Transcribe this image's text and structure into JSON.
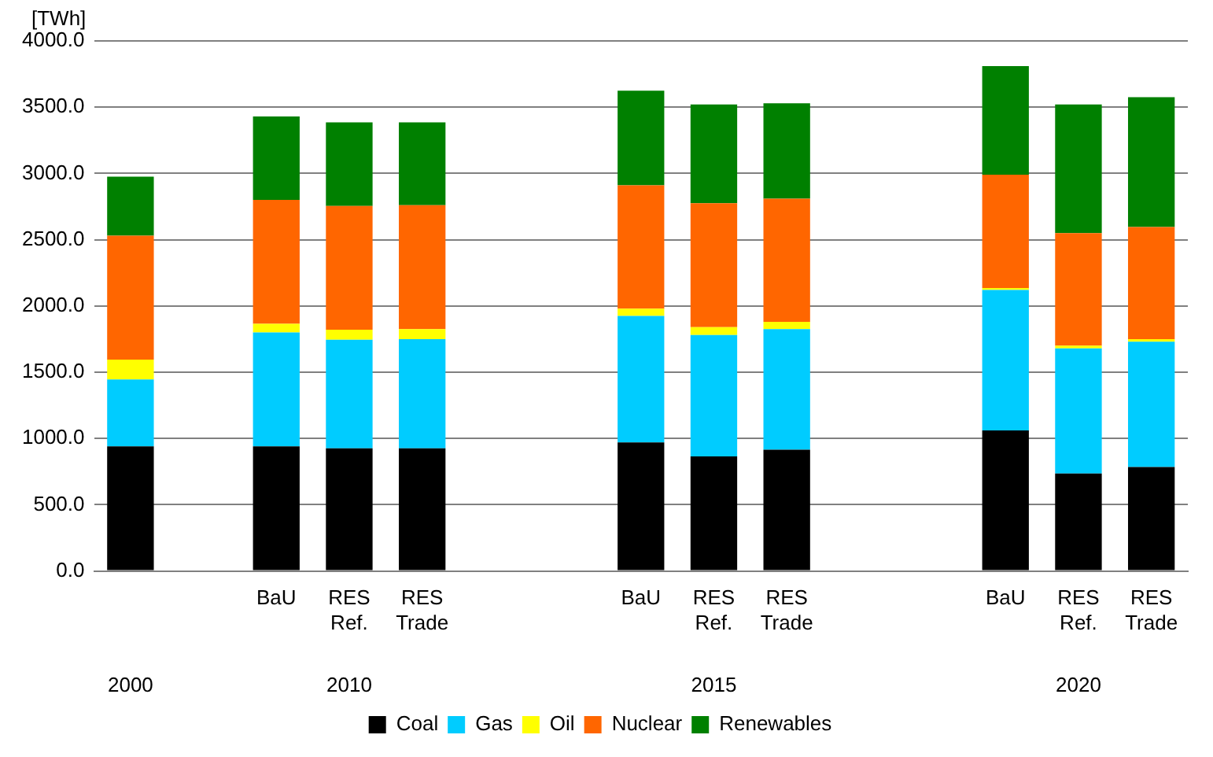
{
  "chart_data": {
    "type": "bar",
    "stacked": true,
    "ylabel": "[TWh]",
    "categories": [
      null,
      null,
      "BaU",
      "RES Ref.",
      "RES Trade",
      null,
      null,
      "BaU",
      "RES Ref.",
      "RES Trade",
      null,
      null,
      "BaU",
      "RES Ref.",
      "RES Trade"
    ],
    "series": [
      {
        "name": "Coal",
        "color": "#000000",
        "values": [
          940,
          null,
          940,
          925,
          925,
          null,
          null,
          970,
          865,
          915,
          null,
          null,
          1060,
          735,
          785
        ]
      },
      {
        "name": "Gas",
        "color": "#00ccff",
        "values": [
          505,
          null,
          860,
          820,
          825,
          null,
          null,
          955,
          915,
          910,
          null,
          null,
          1060,
          945,
          945
        ]
      },
      {
        "name": "Oil",
        "color": "#ffff00",
        "values": [
          150,
          null,
          65,
          75,
          75,
          null,
          null,
          55,
          60,
          55,
          null,
          null,
          15,
          20,
          20
        ]
      },
      {
        "name": "Nuclear",
        "color": "#ff6600",
        "values": [
          935,
          null,
          935,
          935,
          935,
          null,
          null,
          930,
          935,
          930,
          null,
          null,
          855,
          850,
          845
        ]
      },
      {
        "name": "Renewables",
        "color": "#008000",
        "values": [
          445,
          null,
          630,
          630,
          625,
          null,
          null,
          715,
          745,
          720,
          null,
          null,
          820,
          970,
          980
        ]
      }
    ],
    "ylim": [
      0,
      4000
    ],
    "yticks": [
      {
        "value": 0,
        "label": "0.0"
      },
      {
        "value": 500,
        "label": "500.0"
      },
      {
        "value": 1000,
        "label": "1000.0"
      },
      {
        "value": 1500,
        "label": "1500.0"
      },
      {
        "value": 2000,
        "label": "2000.0"
      },
      {
        "value": 2500,
        "label": "2500.0"
      },
      {
        "value": 3000,
        "label": "3000.0"
      },
      {
        "value": 3500,
        "label": "3500.0"
      },
      {
        "value": 4000,
        "label": "4000.0"
      }
    ],
    "annotations": [
      "2000",
      "2010",
      "2015",
      "2020"
    ],
    "grid": "y",
    "legend": "bottom"
  }
}
